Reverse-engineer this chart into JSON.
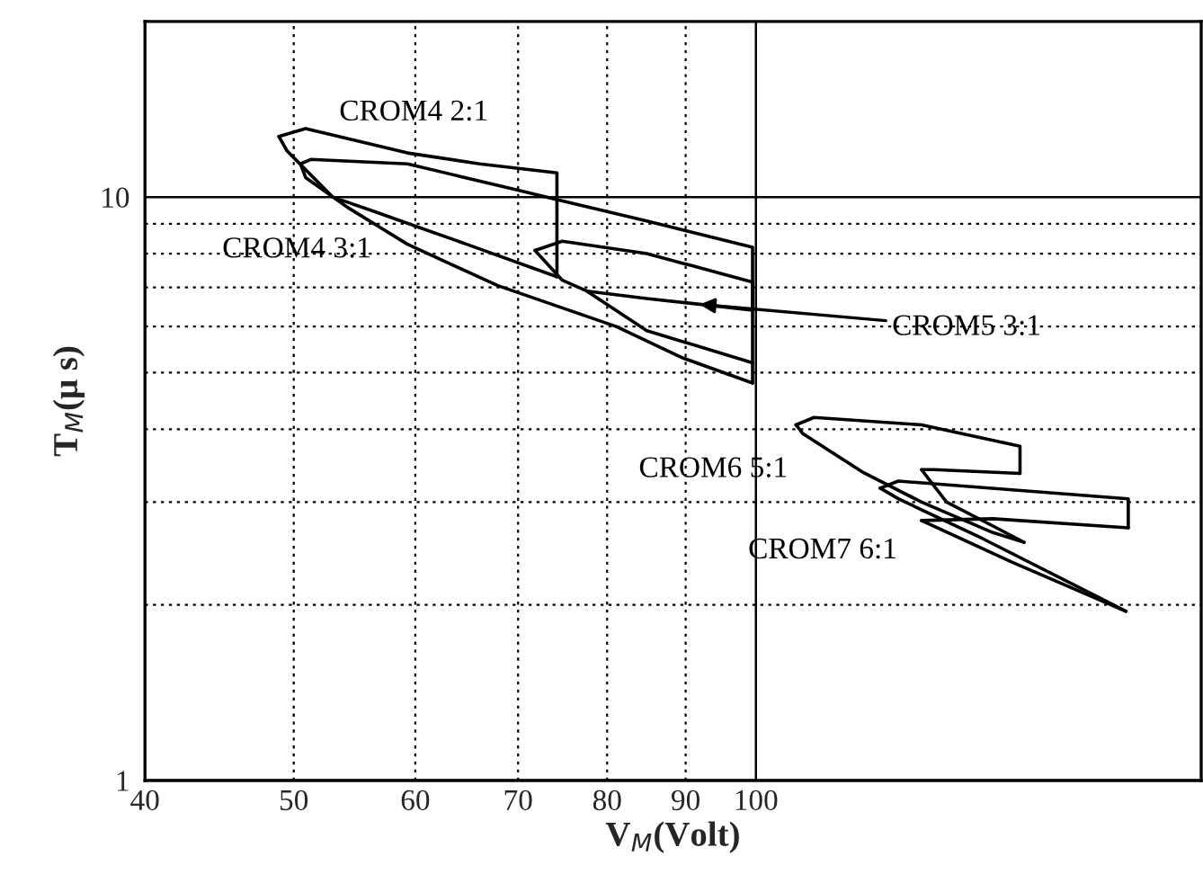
{
  "chart_data": {
    "type": "line",
    "xlabel": "V$_{M}$(Volt)",
    "ylabel": "T$_{M}$(μ s)",
    "log": "xy",
    "grid": true,
    "marker": "none",
    "line_style": "solid",
    "xlim": [
      40,
      195
    ],
    "ylim": [
      1,
      20
    ],
    "xticks": [
      40,
      50,
      60,
      70,
      80,
      90,
      100
    ],
    "yticks": [
      1,
      {
        "value": 2,
        "label": null
      },
      {
        "value": 3,
        "label": null
      },
      {
        "value": 4,
        "label": null
      },
      {
        "value": 5,
        "label": null
      },
      {
        "value": 6,
        "label": null
      },
      {
        "value": 7,
        "label": null
      },
      {
        "value": 8,
        "label": null
      },
      {
        "value": 9,
        "label": null
      },
      10
    ],
    "series": [
      {
        "name": "CROM4 2:1",
        "color": "#000000",
        "x": [
          48.9,
          50.9,
          59.3,
          66.1,
          74.2,
          74.2
        ],
        "values": [
          12.7,
          13.1,
          11.9,
          11.4,
          11.0,
          7.3
        ]
      },
      {
        "color": "#000000",
        "x": [
          48.9,
          49.5,
          53.0,
          56.7,
          64.8,
          74.2
        ],
        "values": [
          12.7,
          12.0,
          10.0,
          9.4,
          8.3,
          7.3
        ]
      },
      {
        "color": "#000000",
        "x": [
          50.5,
          51.3,
          59.3,
          69.7,
          74.2,
          84.9,
          99.5,
          99.5
        ],
        "values": [
          11.4,
          11.6,
          11.4,
          10.3,
          9.9,
          9.1,
          8.2,
          4.8
        ]
      },
      {
        "name": "CROM4 3:1",
        "color": "#000000",
        "x": [
          50.5,
          50.9,
          54.2,
          59.3,
          67.9,
          81.1,
          89.6,
          99.5
        ],
        "values": [
          11.4,
          10.8,
          9.6,
          8.3,
          7.05,
          6.0,
          5.3,
          4.8
        ]
      },
      {
        "color": "#000000",
        "x": [
          71.8,
          74.8,
          84.9,
          99.5,
          99.5
        ],
        "values": [
          8.1,
          8.4,
          8.0,
          7.15,
          6.4
        ]
      },
      {
        "name": "CROM5 3:1",
        "color": "#000000",
        "x": [
          71.8,
          74.8,
          77.6,
          84.9,
          99.5
        ],
        "values": [
          8.1,
          7.2,
          6.9,
          6.7,
          6.4
        ]
      },
      {
        "color": "#000000",
        "x": [
          77.6,
          84.9,
          99.5
        ],
        "values": [
          6.9,
          5.9,
          5.2
        ]
      },
      {
        "name": "CROM6 5:1",
        "color": "#000000",
        "x": [
          106.2,
          109.1,
          128.2,
          148.6,
          148.6
        ],
        "values": [
          4.07,
          4.19,
          4.07,
          3.74,
          3.36
        ]
      },
      {
        "color": "#000000",
        "x": [
          128.2,
          130.6,
          148.6
        ],
        "values": [
          3.41,
          3.41,
          3.36
        ]
      },
      {
        "color": "#000000",
        "x": [
          128.2,
          133.1,
          142.7,
          149.5
        ],
        "values": [
          3.41,
          3.0,
          2.73,
          2.56
        ]
      },
      {
        "color": "#000000",
        "x": [
          106.2,
          107.3,
          117.3,
          128.2,
          142.7,
          149.5
        ],
        "values": [
          4.07,
          3.93,
          3.38,
          3.0,
          2.66,
          2.56
        ]
      },
      {
        "name": "CROM7 6:1",
        "color": "#000000",
        "x": [
          120.5,
          123.8,
          174.8,
          174.8
        ],
        "values": [
          3.17,
          3.26,
          3.04,
          2.71
        ]
      },
      {
        "color": "#000000",
        "x": [
          128.2,
          142.7,
          174.8
        ],
        "values": [
          2.79,
          2.81,
          2.71
        ]
      },
      {
        "color": "#000000",
        "x": [
          128.2,
          146.7,
          174.2
        ],
        "values": [
          2.79,
          2.37,
          1.95
        ]
      },
      {
        "color": "#000000",
        "x": [
          120.5,
          123.8,
          140.4,
          167.8,
          174.2
        ],
        "values": [
          3.17,
          3.04,
          2.6,
          2.05,
          1.95
        ]
      }
    ]
  }
}
